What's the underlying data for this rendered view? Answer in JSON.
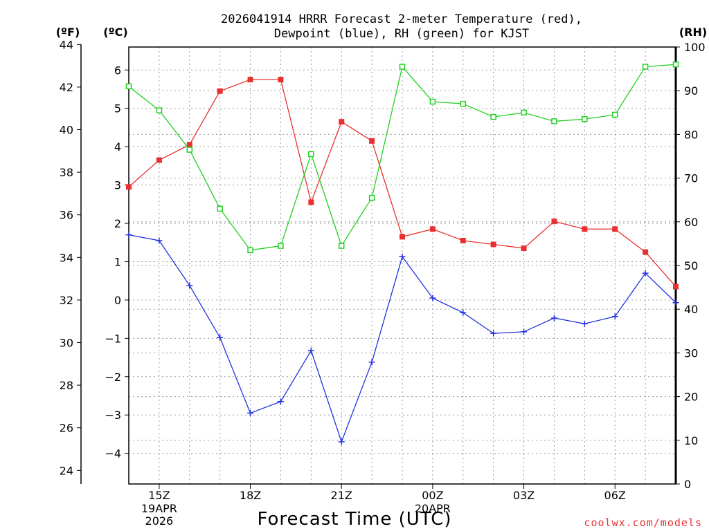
{
  "chart_data": {
    "type": "line",
    "title_lines": [
      "2026041914 HRRR Forecast 2-meter Temperature (red),",
      "Dewpoint (blue), RH (green) for KJST"
    ],
    "xlabel": "Forecast Time (UTC)",
    "credit": "coolwx.com/models",
    "units": {
      "fahrenheit": "(ºF)",
      "celsius": "(ºC)",
      "rh": "(RH)"
    },
    "x_hours": [
      14,
      15,
      16,
      17,
      18,
      19,
      20,
      21,
      22,
      23,
      24,
      25,
      26,
      27,
      28,
      29,
      30,
      31,
      32
    ],
    "x_range": [
      14,
      32
    ],
    "x_ticks": [
      {
        "hour": 15,
        "label": "15Z",
        "sub": [
          "19APR",
          "2026"
        ]
      },
      {
        "hour": 18,
        "label": "18Z",
        "sub": []
      },
      {
        "hour": 21,
        "label": "21Z",
        "sub": []
      },
      {
        "hour": 24,
        "label": "00Z",
        "sub": [
          "20APR"
        ]
      },
      {
        "hour": 27,
        "label": "03Z",
        "sub": []
      },
      {
        "hour": 30,
        "label": "06Z",
        "sub": []
      }
    ],
    "celsius_axis": {
      "range": [
        -4.8,
        6.6
      ],
      "ticks": [
        -4,
        -3,
        -2,
        -1,
        0,
        1,
        2,
        3,
        4,
        5,
        6
      ]
    },
    "fahrenheit_axis": {
      "ticks": [
        24,
        26,
        28,
        30,
        32,
        34,
        36,
        38,
        40,
        42,
        44
      ]
    },
    "rh_axis": {
      "range": [
        0,
        100
      ],
      "ticks": [
        0,
        10,
        20,
        30,
        40,
        50,
        60,
        70,
        80,
        90,
        100
      ]
    },
    "grid": true,
    "series": [
      {
        "axis": "celsius",
        "color": "#e83030",
        "marker": "filled-square",
        "values": [
          2.95,
          3.65,
          4.05,
          5.45,
          5.75,
          5.75,
          2.55,
          4.65,
          4.15,
          1.65,
          1.85,
          1.55,
          1.45,
          1.35,
          2.05,
          1.85,
          1.85,
          1.25,
          0.35
        ]
      },
      {
        "axis": "celsius",
        "color": "#2030e0",
        "marker": "plus",
        "values": [
          1.7,
          1.55,
          0.38,
          -0.98,
          -2.95,
          -2.65,
          -1.32,
          -3.7,
          -1.62,
          1.13,
          0.05,
          -0.33,
          -0.87,
          -0.83,
          -0.47,
          -0.62,
          -0.43,
          0.7,
          -0.07
        ]
      },
      {
        "axis": "rh",
        "color": "#20d020",
        "marker": "open-square",
        "values": [
          91,
          85.5,
          76.5,
          63,
          53.5,
          54.5,
          75.5,
          54.5,
          65.5,
          95.5,
          87.5,
          87,
          84,
          85,
          83,
          83.5,
          84.5,
          95.5,
          96
        ]
      }
    ]
  }
}
